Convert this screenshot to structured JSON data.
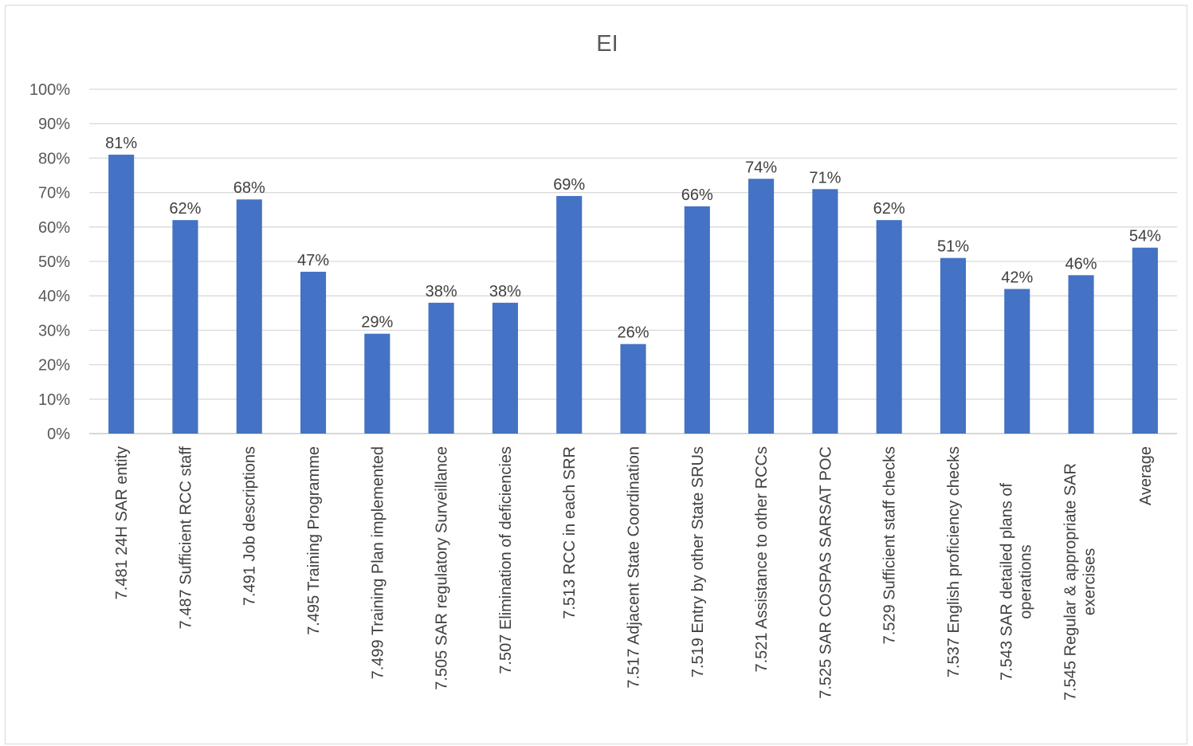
{
  "chart_data": {
    "type": "bar",
    "title": "EI",
    "xlabel": "",
    "ylabel": "",
    "ylim": [
      0,
      100
    ],
    "yticks": [
      "0%",
      "10%",
      "20%",
      "30%",
      "40%",
      "50%",
      "60%",
      "70%",
      "80%",
      "90%",
      "100%"
    ],
    "grid": true,
    "legend": "none",
    "bar_color": "#4472c4",
    "categories": [
      [
        "7.481 24H SAR entity"
      ],
      [
        "7.487 Sufficient RCC staff"
      ],
      [
        "7.491 Job descriptions"
      ],
      [
        "7.495 Training Programme"
      ],
      [
        "7.499 Training Plan implemented"
      ],
      [
        "7.505 SAR regulatory Surveillance"
      ],
      [
        "7.507 Elimination of deficiencies"
      ],
      [
        "7.513 RCC in each SRR"
      ],
      [
        "7.517 Adjacent State Coordination"
      ],
      [
        "7.519 Entry by other State SRUs"
      ],
      [
        "7.521 Assistance to other RCCs"
      ],
      [
        "7.525 SAR COSPAS SARSAT POC"
      ],
      [
        "7.529 Sufficient staff checks"
      ],
      [
        "7.537 English proficiency checks"
      ],
      [
        "7.543 SAR detailed plans of",
        "operations"
      ],
      [
        "7.545 Regular & appropriate SAR",
        "exercises"
      ],
      [
        "Average"
      ]
    ],
    "values": [
      81,
      62,
      68,
      47,
      29,
      38,
      38,
      69,
      26,
      66,
      74,
      71,
      62,
      51,
      42,
      46,
      54
    ],
    "data_labels": [
      "81%",
      "62%",
      "68%",
      "47%",
      "29%",
      "38%",
      "38%",
      "69%",
      "26%",
      "66%",
      "74%",
      "71%",
      "62%",
      "51%",
      "42%",
      "46%",
      "54%"
    ]
  }
}
